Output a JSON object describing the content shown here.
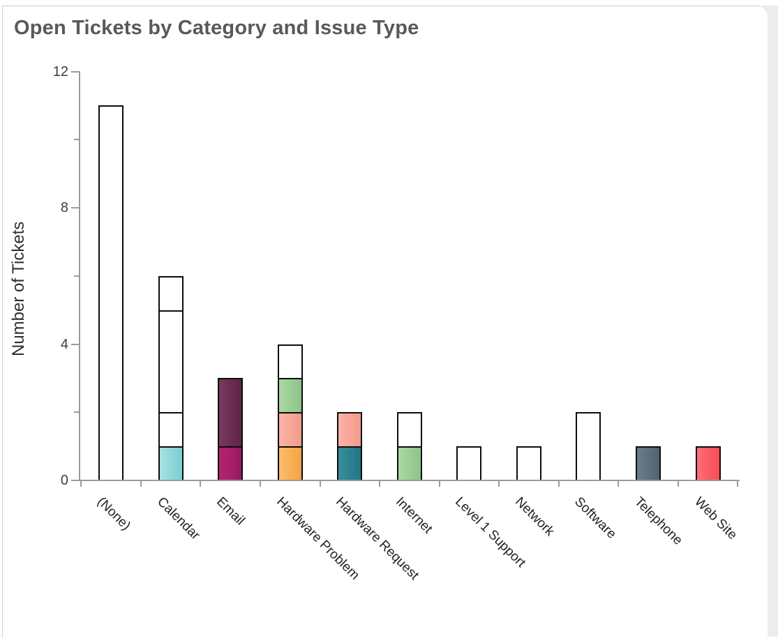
{
  "window": {
    "background": "#ffffff",
    "panel_border": "#cfcfcf",
    "right_strip_color": "#ececec"
  },
  "chart_data": {
    "type": "stacked-bar",
    "title": "Open Tickets by Category and Issue Type",
    "ylabel": "Number of Tickets",
    "xlabel": "",
    "ylim": [
      0,
      12
    ],
    "grid": false,
    "legend": false,
    "y_ticks": [
      {
        "value": 0,
        "label": "0"
      },
      {
        "value": 2
      },
      {
        "value": 4,
        "label": "4"
      },
      {
        "value": 6
      },
      {
        "value": 8,
        "label": "8"
      },
      {
        "value": 10
      },
      {
        "value": 12,
        "label": "12"
      }
    ],
    "categories": [
      "(None)",
      "Calendar",
      "Email",
      "Hardware Problem",
      "Hardware Request",
      "Internet",
      "Level 1 Support",
      "Network",
      "Software",
      "Telephone",
      "Web Site"
    ],
    "bars": [
      {
        "category": "(None)",
        "total": 11,
        "segments": [
          {
            "value": 11,
            "color": "white"
          }
        ]
      },
      {
        "category": "Calendar",
        "total": 6,
        "segments": [
          {
            "value": 1,
            "color": "cyan"
          },
          {
            "value": 1,
            "color": "white"
          },
          {
            "value": 3,
            "color": "white"
          },
          {
            "value": 1,
            "color": "white"
          }
        ]
      },
      {
        "category": "Email",
        "total": 3,
        "segments": [
          {
            "value": 1,
            "color": "magenta"
          },
          {
            "value": 2,
            "color": "plum"
          }
        ]
      },
      {
        "category": "Hardware Problem",
        "total": 4,
        "segments": [
          {
            "value": 1,
            "color": "orange"
          },
          {
            "value": 1,
            "color": "salmon"
          },
          {
            "value": 1,
            "color": "green"
          },
          {
            "value": 1,
            "color": "white"
          }
        ]
      },
      {
        "category": "Hardware Request",
        "total": 2,
        "segments": [
          {
            "value": 1,
            "color": "teal"
          },
          {
            "value": 1,
            "color": "salmon"
          }
        ]
      },
      {
        "category": "Internet",
        "total": 2,
        "segments": [
          {
            "value": 1,
            "color": "green"
          },
          {
            "value": 1,
            "color": "white"
          }
        ]
      },
      {
        "category": "Level 1 Support",
        "total": 1,
        "segments": [
          {
            "value": 1,
            "color": "white"
          }
        ]
      },
      {
        "category": "Network",
        "total": 1,
        "segments": [
          {
            "value": 1,
            "color": "white"
          }
        ]
      },
      {
        "category": "Software",
        "total": 2,
        "segments": [
          {
            "value": 2,
            "color": "white"
          }
        ]
      },
      {
        "category": "Telephone",
        "total": 1,
        "segments": [
          {
            "value": 1,
            "color": "slate"
          }
        ]
      },
      {
        "category": "Web Site",
        "total": 1,
        "segments": [
          {
            "value": 1,
            "color": "red"
          }
        ]
      }
    ],
    "palette": {
      "white": {
        "light": "#ffffff",
        "base": "#ffffff",
        "dark": "#fdfdfd"
      },
      "cyan": {
        "light": "#a9e2e3",
        "base": "#8ed7d8",
        "dark": "#79ced2"
      },
      "magenta": {
        "light": "#b3246f",
        "base": "#a81e6b",
        "dark": "#941a60"
      },
      "plum": {
        "light": "#7a3a61",
        "base": "#6a2c52",
        "dark": "#5c2546"
      },
      "orange": {
        "light": "#fbbd6e",
        "base": "#f9ae52",
        "dark": "#f6a348"
      },
      "salmon": {
        "light": "#fbb4a7",
        "base": "#f7a596",
        "dark": "#f29a8b"
      },
      "green": {
        "light": "#abd7a5",
        "base": "#9bcd94",
        "dark": "#8ec388"
      },
      "teal": {
        "light": "#3a8d9c",
        "base": "#2b8191",
        "dark": "#207585"
      },
      "slate": {
        "light": "#6b7c8b",
        "base": "#5d6e7e",
        "dark": "#516272"
      },
      "red": {
        "light": "#fc6f78",
        "base": "#fb5a63",
        "dark": "#f84f5a"
      }
    },
    "bar_outline": "#0d0d0d",
    "axis_color": "#9a9a9a",
    "tick_label_color": "#3d3d3d",
    "title_color": "#58595b",
    "x_label_color": "#222222"
  }
}
